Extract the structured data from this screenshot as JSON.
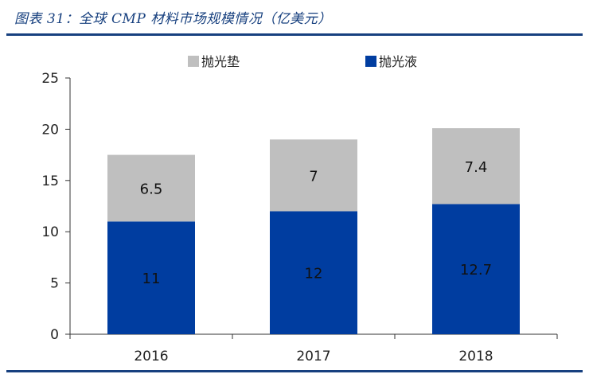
{
  "caption": "图表 31：全球 CMP 材料市场规模情况（亿美元）",
  "colors": {
    "accent": "#17407f",
    "series_pad": "#bfbfbf",
    "series_slurry": "#003da0"
  },
  "chart_data": {
    "type": "bar",
    "stacked": true,
    "categories": [
      "2016",
      "2017",
      "2018"
    ],
    "series": [
      {
        "name": "抛光液",
        "values": [
          11,
          12,
          12.7
        ],
        "labels": [
          "11",
          "12",
          "12.7"
        ],
        "color": "#003da0"
      },
      {
        "name": "抛光垫",
        "values": [
          6.5,
          7,
          7.4
        ],
        "labels": [
          "6.5",
          "7",
          "7.4"
        ],
        "color": "#bfbfbf"
      }
    ],
    "legend_order": [
      1,
      0
    ],
    "legend_position": "top",
    "title": "",
    "xlabel": "",
    "ylabel": "",
    "ylim": [
      0,
      25
    ],
    "yticks": [
      0,
      5,
      10,
      15,
      20,
      25
    ],
    "grid": false
  }
}
